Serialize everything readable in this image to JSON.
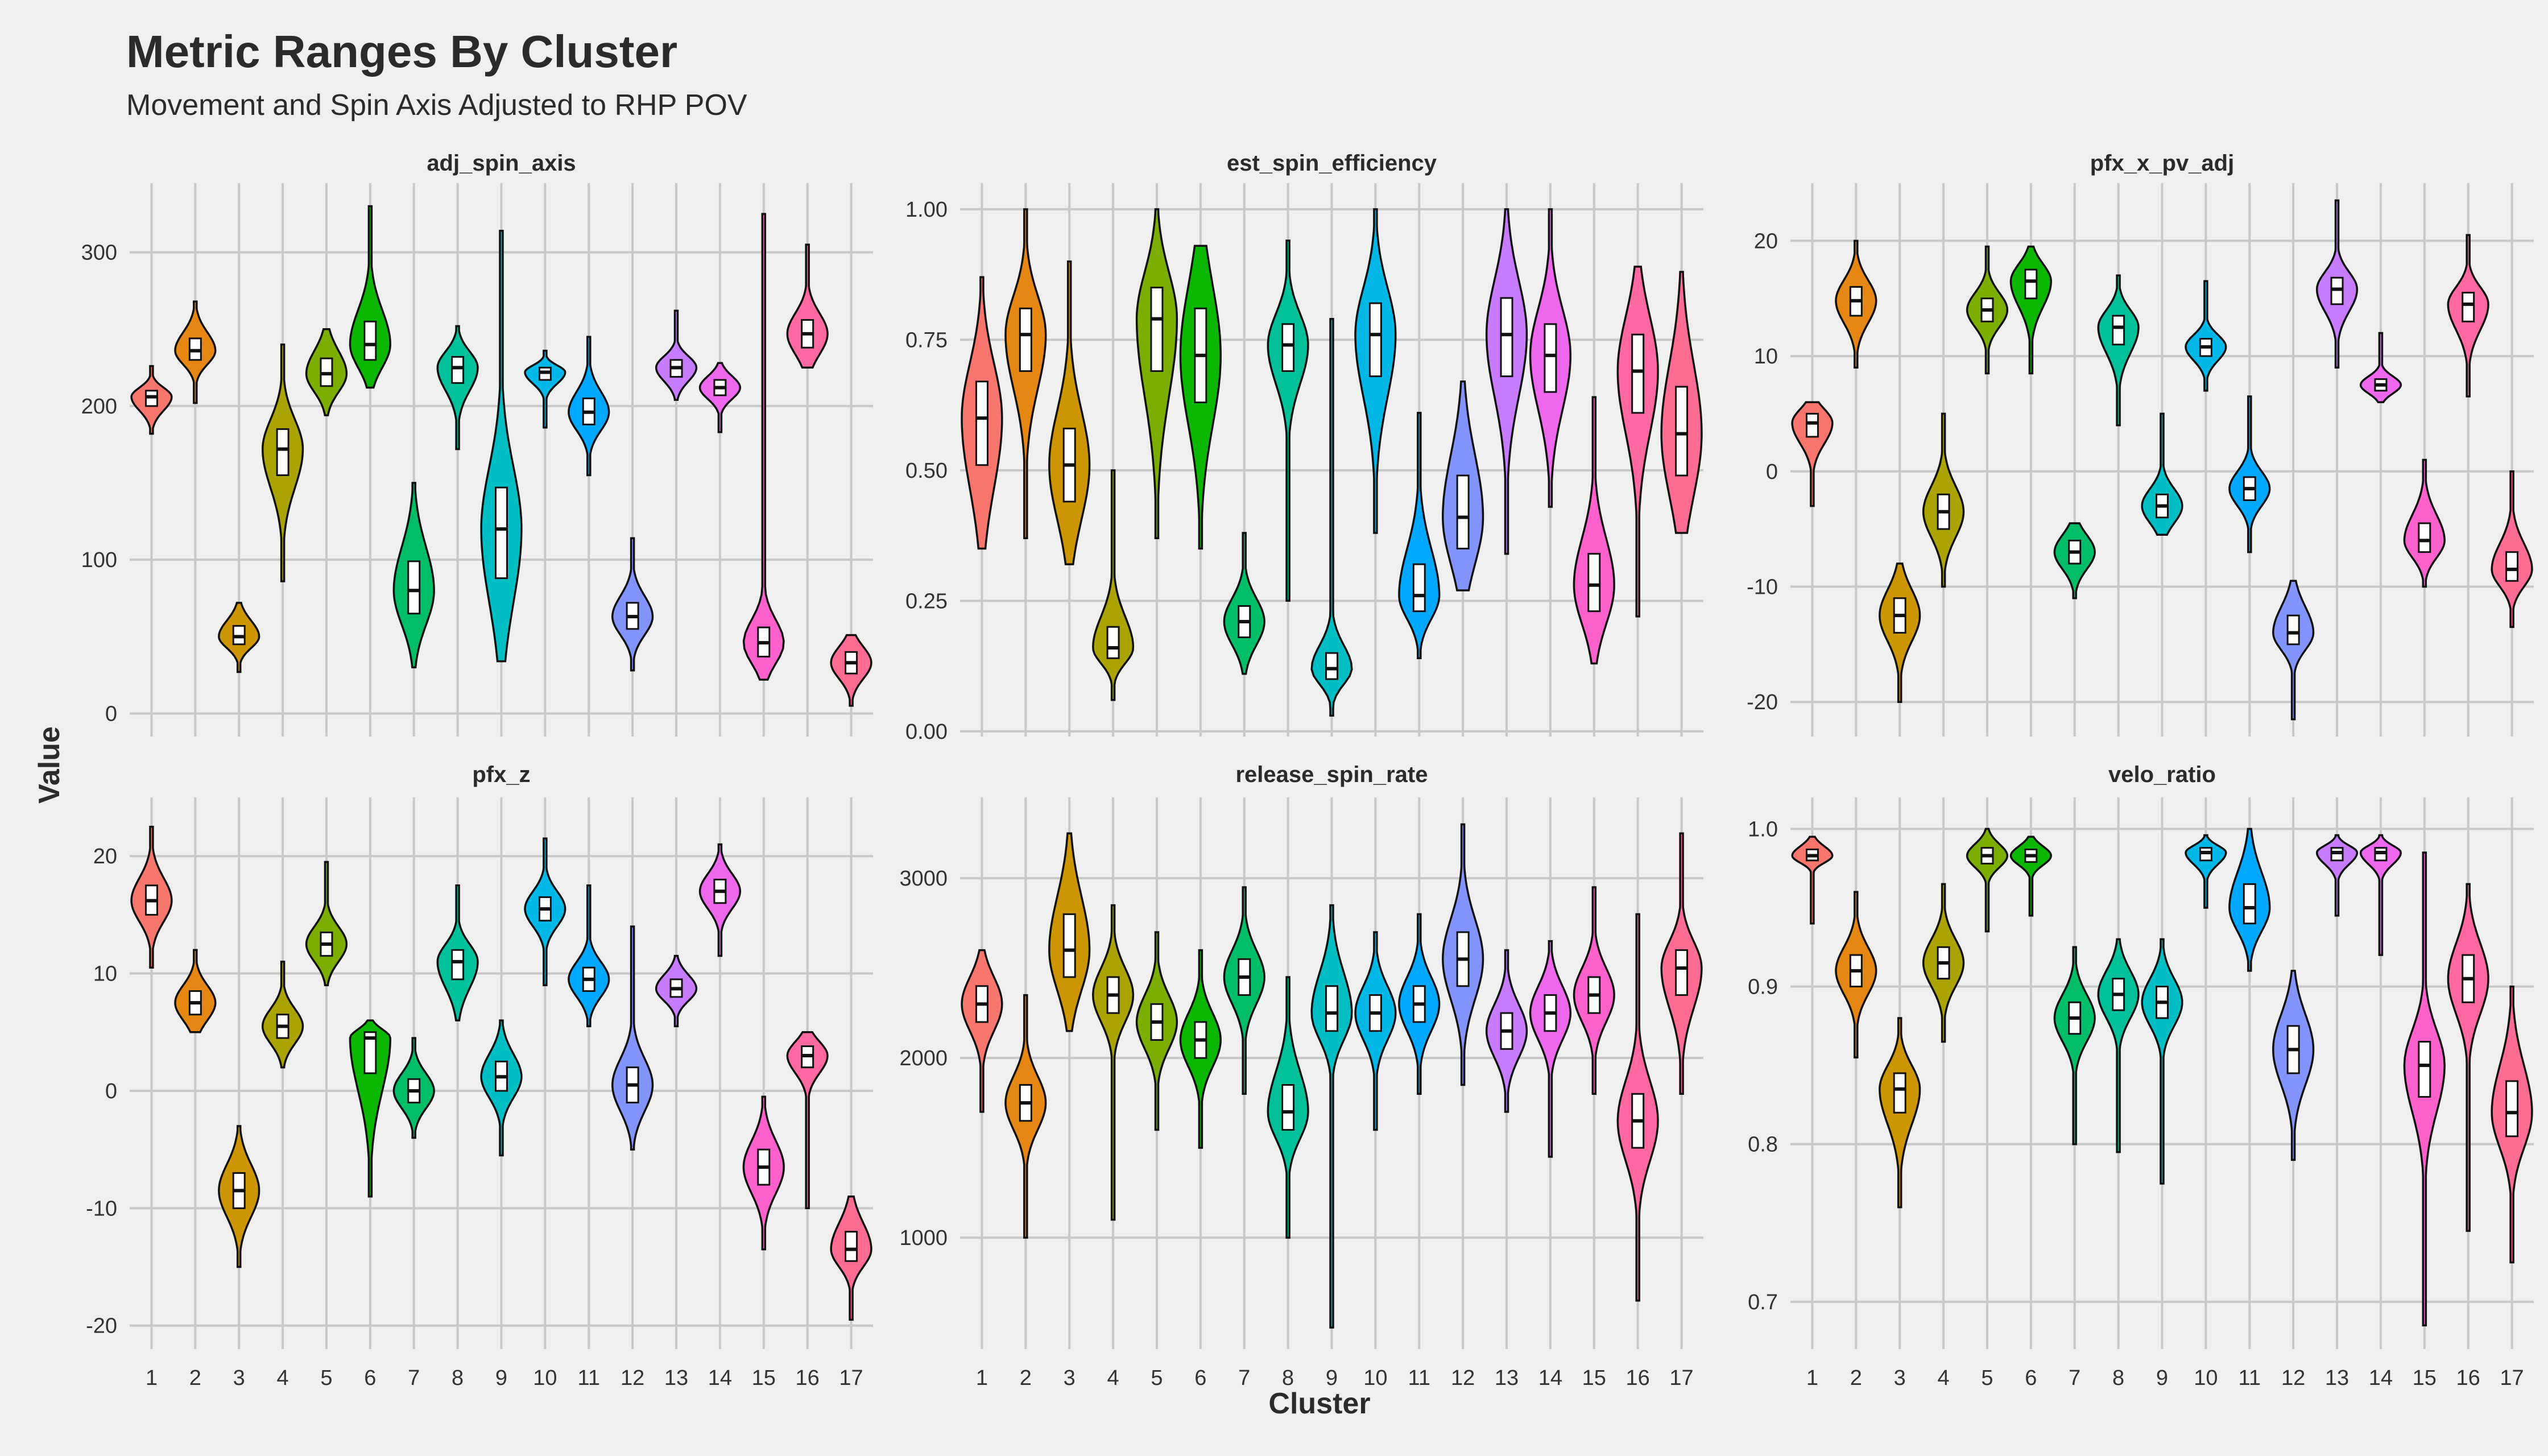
{
  "title": "Metric Ranges By Cluster",
  "subtitle": "Movement and Spin Axis Adjusted to RHP POV",
  "chart_data": {
    "type": "violin",
    "xlabel": "Cluster",
    "ylabel": "Value",
    "categories": [
      "1",
      "2",
      "3",
      "4",
      "5",
      "6",
      "7",
      "8",
      "9",
      "10",
      "11",
      "12",
      "13",
      "14",
      "15",
      "16",
      "17"
    ],
    "colors": [
      "#F8766D",
      "#E68613",
      "#CD9600",
      "#ABA300",
      "#7CAE00",
      "#0CB702",
      "#00BE67",
      "#00C19A",
      "#00BFC4",
      "#00B8E7",
      "#00A9FF",
      "#8494FF",
      "#C77CFF",
      "#ED68ED",
      "#FF61CC",
      "#FF68A1",
      "#FF6C91"
    ],
    "panels": [
      {
        "name": "adj_spin_axis",
        "ylim": [
          -15,
          345
        ],
        "yticks": [
          0,
          100,
          200,
          300
        ],
        "ytick_labels": [
          "0",
          "100",
          "200",
          "300"
        ],
        "stats": [
          {
            "min": 182,
            "q1": 200,
            "med": 206,
            "q3": 210,
            "max": 226
          },
          {
            "min": 202,
            "q1": 230,
            "med": 236,
            "q3": 244,
            "max": 268
          },
          {
            "min": 27,
            "q1": 45,
            "med": 50,
            "q3": 57,
            "max": 72
          },
          {
            "min": 86,
            "q1": 155,
            "med": 172,
            "q3": 185,
            "max": 240
          },
          {
            "min": 194,
            "q1": 213,
            "med": 221,
            "q3": 231,
            "max": 250
          },
          {
            "min": 212,
            "q1": 230,
            "med": 240,
            "q3": 255,
            "max": 330
          },
          {
            "min": 30,
            "q1": 65,
            "med": 80,
            "q3": 99,
            "max": 150
          },
          {
            "min": 172,
            "q1": 215,
            "med": 225,
            "q3": 232,
            "max": 252
          },
          {
            "min": 34,
            "q1": 88,
            "med": 120,
            "q3": 147,
            "max": 314
          },
          {
            "min": 186,
            "q1": 217,
            "med": 222,
            "q3": 225,
            "max": 236
          },
          {
            "min": 155,
            "q1": 188,
            "med": 196,
            "q3": 205,
            "max": 245
          },
          {
            "min": 28,
            "q1": 55,
            "med": 63,
            "q3": 72,
            "max": 114
          },
          {
            "min": 204,
            "q1": 219,
            "med": 225,
            "q3": 230,
            "max": 262
          },
          {
            "min": 183,
            "q1": 207,
            "med": 212,
            "q3": 217,
            "max": 228
          },
          {
            "min": 22,
            "q1": 37,
            "med": 46,
            "q3": 56,
            "max": 325
          },
          {
            "min": 225,
            "q1": 238,
            "med": 247,
            "q3": 256,
            "max": 305
          },
          {
            "min": 5,
            "q1": 26,
            "med": 33,
            "q3": 40,
            "max": 51
          }
        ]
      },
      {
        "name": "est_spin_efficiency",
        "ylim": [
          -0.01,
          1.05
        ],
        "yticks": [
          0,
          0.25,
          0.5,
          0.75,
          1
        ],
        "ytick_labels": [
          "0.00",
          "0.25",
          "0.50",
          "0.75",
          "1.00"
        ],
        "stats": [
          {
            "min": 0.35,
            "q1": 0.51,
            "med": 0.6,
            "q3": 0.67,
            "max": 0.87
          },
          {
            "min": 0.37,
            "q1": 0.69,
            "med": 0.76,
            "q3": 0.81,
            "max": 1.0
          },
          {
            "min": 0.32,
            "q1": 0.44,
            "med": 0.51,
            "q3": 0.58,
            "max": 0.9
          },
          {
            "min": 0.06,
            "q1": 0.14,
            "med": 0.16,
            "q3": 0.2,
            "max": 0.5
          },
          {
            "min": 0.37,
            "q1": 0.69,
            "med": 0.79,
            "q3": 0.85,
            "max": 1.0
          },
          {
            "min": 0.35,
            "q1": 0.63,
            "med": 0.72,
            "q3": 0.81,
            "max": 0.93
          },
          {
            "min": 0.11,
            "q1": 0.18,
            "med": 0.21,
            "q3": 0.24,
            "max": 0.38
          },
          {
            "min": 0.25,
            "q1": 0.69,
            "med": 0.74,
            "q3": 0.78,
            "max": 0.94
          },
          {
            "min": 0.03,
            "q1": 0.1,
            "med": 0.12,
            "q3": 0.15,
            "max": 0.79
          },
          {
            "min": 0.38,
            "q1": 0.68,
            "med": 0.76,
            "q3": 0.82,
            "max": 1.0
          },
          {
            "min": 0.14,
            "q1": 0.23,
            "med": 0.26,
            "q3": 0.32,
            "max": 0.61
          },
          {
            "min": 0.27,
            "q1": 0.35,
            "med": 0.41,
            "q3": 0.49,
            "max": 0.67
          },
          {
            "min": 0.34,
            "q1": 0.68,
            "med": 0.76,
            "q3": 0.83,
            "max": 1.0
          },
          {
            "min": 0.43,
            "q1": 0.65,
            "med": 0.72,
            "q3": 0.78,
            "max": 1.0
          },
          {
            "min": 0.13,
            "q1": 0.23,
            "med": 0.28,
            "q3": 0.34,
            "max": 0.64
          },
          {
            "min": 0.22,
            "q1": 0.61,
            "med": 0.69,
            "q3": 0.76,
            "max": 0.89
          },
          {
            "min": 0.38,
            "q1": 0.49,
            "med": 0.57,
            "q3": 0.66,
            "max": 0.88
          }
        ]
      },
      {
        "name": "pfx_x_pv_adj",
        "ylim": [
          -23,
          25
        ],
        "yticks": [
          -20,
          -10,
          0,
          10,
          20
        ],
        "ytick_labels": [
          "-20",
          "-10",
          "0",
          "10",
          "20"
        ],
        "stats": [
          {
            "min": -3,
            "q1": 3,
            "med": 4.2,
            "q3": 5,
            "max": 6
          },
          {
            "min": 9,
            "q1": 13.5,
            "med": 14.8,
            "q3": 16,
            "max": 20
          },
          {
            "min": -20,
            "q1": -14,
            "med": -12.5,
            "q3": -11,
            "max": -8
          },
          {
            "min": -10,
            "q1": -5,
            "med": -3.5,
            "q3": -2,
            "max": 5
          },
          {
            "min": 8.5,
            "q1": 13,
            "med": 14,
            "q3": 15,
            "max": 19.5
          },
          {
            "min": 8.5,
            "q1": 15,
            "med": 16.5,
            "q3": 17.5,
            "max": 19.5
          },
          {
            "min": -11,
            "q1": -8,
            "med": -7,
            "q3": -6,
            "max": -4.5
          },
          {
            "min": 4,
            "q1": 11,
            "med": 12.5,
            "q3": 13.5,
            "max": 17
          },
          {
            "min": -5.5,
            "q1": -4,
            "med": -3,
            "q3": -2,
            "max": 5
          },
          {
            "min": 7,
            "q1": 10,
            "med": 10.8,
            "q3": 11.5,
            "max": 16.5
          },
          {
            "min": -7,
            "q1": -2.5,
            "med": -1.5,
            "q3": -0.5,
            "max": 6.5
          },
          {
            "min": -21.5,
            "q1": -15,
            "med": -14,
            "q3": -12.5,
            "max": -9.5
          },
          {
            "min": 9,
            "q1": 14.5,
            "med": 15.8,
            "q3": 16.8,
            "max": 23.5
          },
          {
            "min": 6,
            "q1": 7,
            "med": 7.5,
            "q3": 8,
            "max": 12
          },
          {
            "min": -10,
            "q1": -7,
            "med": -6,
            "q3": -4.5,
            "max": 1
          },
          {
            "min": 6.5,
            "q1": 13,
            "med": 14.5,
            "q3": 15.5,
            "max": 20.5
          },
          {
            "min": -13.5,
            "q1": -9.5,
            "med": -8.5,
            "q3": -7,
            "max": 0
          }
        ]
      },
      {
        "name": "pfx_z",
        "ylim": [
          -22,
          25
        ],
        "yticks": [
          -20,
          -10,
          0,
          10,
          20
        ],
        "ytick_labels": [
          "-20",
          "-10",
          "0",
          "10",
          "20"
        ],
        "stats": [
          {
            "min": 10.5,
            "q1": 15,
            "med": 16.2,
            "q3": 17.5,
            "max": 22.5
          },
          {
            "min": 5,
            "q1": 6.5,
            "med": 7.5,
            "q3": 8.5,
            "max": 12
          },
          {
            "min": -15,
            "q1": -10,
            "med": -8.5,
            "q3": -7,
            "max": -3
          },
          {
            "min": 2,
            "q1": 4.5,
            "med": 5.5,
            "q3": 6.5,
            "max": 11
          },
          {
            "min": 9,
            "q1": 11.5,
            "med": 12.5,
            "q3": 13.5,
            "max": 19.5
          },
          {
            "min": -9,
            "q1": 1.5,
            "med": 4.5,
            "q3": 5,
            "max": 6
          },
          {
            "min": -4,
            "q1": -1,
            "med": 0,
            "q3": 1,
            "max": 4.5
          },
          {
            "min": 6,
            "q1": 9.5,
            "med": 11,
            "q3": 12,
            "max": 17.5
          },
          {
            "min": -5.5,
            "q1": 0,
            "med": 1.2,
            "q3": 2.5,
            "max": 6
          },
          {
            "min": 9,
            "q1": 14.5,
            "med": 15.5,
            "q3": 16.5,
            "max": 21.5
          },
          {
            "min": 5.5,
            "q1": 8.5,
            "med": 9.5,
            "q3": 10.5,
            "max": 17.5
          },
          {
            "min": -5,
            "q1": -1,
            "med": 0.5,
            "q3": 2,
            "max": 14
          },
          {
            "min": 5.5,
            "q1": 8,
            "med": 8.7,
            "q3": 9.5,
            "max": 11.5
          },
          {
            "min": 11.5,
            "q1": 16,
            "med": 17,
            "q3": 18,
            "max": 21
          },
          {
            "min": -13.5,
            "q1": -8,
            "med": -6.5,
            "q3": -5,
            "max": -0.5
          },
          {
            "min": -10,
            "q1": 2,
            "med": 3,
            "q3": 3.8,
            "max": 5
          },
          {
            "min": -19.5,
            "q1": -14.5,
            "med": -13.5,
            "q3": -12,
            "max": -9
          }
        ]
      },
      {
        "name": "release_spin_rate",
        "ylim": [
          380,
          3450
        ],
        "yticks": [
          1000,
          2000,
          3000
        ],
        "ytick_labels": [
          "1000",
          "2000",
          "3000"
        ],
        "stats": [
          {
            "min": 1700,
            "q1": 2200,
            "med": 2300,
            "q3": 2400,
            "max": 2600
          },
          {
            "min": 1000,
            "q1": 1650,
            "med": 1750,
            "q3": 1850,
            "max": 2350
          },
          {
            "min": 2150,
            "q1": 2450,
            "med": 2600,
            "q3": 2800,
            "max": 3250
          },
          {
            "min": 1100,
            "q1": 2250,
            "med": 2350,
            "q3": 2450,
            "max": 2850
          },
          {
            "min": 1600,
            "q1": 2100,
            "med": 2200,
            "q3": 2300,
            "max": 2700
          },
          {
            "min": 1500,
            "q1": 2000,
            "med": 2100,
            "q3": 2200,
            "max": 2600
          },
          {
            "min": 1800,
            "q1": 2350,
            "med": 2450,
            "q3": 2550,
            "max": 2950
          },
          {
            "min": 1000,
            "q1": 1600,
            "med": 1700,
            "q3": 1850,
            "max": 2450
          },
          {
            "min": 500,
            "q1": 2150,
            "med": 2250,
            "q3": 2400,
            "max": 2850
          },
          {
            "min": 1600,
            "q1": 2150,
            "med": 2250,
            "q3": 2350,
            "max": 2700
          },
          {
            "min": 1800,
            "q1": 2200,
            "med": 2300,
            "q3": 2400,
            "max": 2800
          },
          {
            "min": 1850,
            "q1": 2400,
            "med": 2550,
            "q3": 2700,
            "max": 3300
          },
          {
            "min": 1700,
            "q1": 2050,
            "med": 2150,
            "q3": 2250,
            "max": 2600
          },
          {
            "min": 1450,
            "q1": 2150,
            "med": 2250,
            "q3": 2350,
            "max": 2650
          },
          {
            "min": 1800,
            "q1": 2250,
            "med": 2350,
            "q3": 2450,
            "max": 2950
          },
          {
            "min": 650,
            "q1": 1500,
            "med": 1650,
            "q3": 1800,
            "max": 2800
          },
          {
            "min": 1800,
            "q1": 2350,
            "med": 2500,
            "q3": 2600,
            "max": 3250
          }
        ]
      },
      {
        "name": "velo_ratio",
        "ylim": [
          0.67,
          1.02
        ],
        "yticks": [
          0.7,
          0.8,
          0.9,
          1.0
        ],
        "ytick_labels": [
          "0.7",
          "0.8",
          "0.9",
          "1.0"
        ],
        "stats": [
          {
            "min": 0.94,
            "q1": 0.98,
            "med": 0.983,
            "q3": 0.987,
            "max": 0.995
          },
          {
            "min": 0.855,
            "q1": 0.9,
            "med": 0.91,
            "q3": 0.92,
            "max": 0.96
          },
          {
            "min": 0.76,
            "q1": 0.82,
            "med": 0.835,
            "q3": 0.845,
            "max": 0.88
          },
          {
            "min": 0.865,
            "q1": 0.905,
            "med": 0.915,
            "q3": 0.925,
            "max": 0.965
          },
          {
            "min": 0.935,
            "q1": 0.978,
            "med": 0.983,
            "q3": 0.988,
            "max": 1.0
          },
          {
            "min": 0.945,
            "q1": 0.979,
            "med": 0.983,
            "q3": 0.987,
            "max": 0.995
          },
          {
            "min": 0.8,
            "q1": 0.87,
            "med": 0.88,
            "q3": 0.89,
            "max": 0.925
          },
          {
            "min": 0.795,
            "q1": 0.885,
            "med": 0.895,
            "q3": 0.905,
            "max": 0.93
          },
          {
            "min": 0.775,
            "q1": 0.88,
            "med": 0.89,
            "q3": 0.9,
            "max": 0.93
          },
          {
            "min": 0.95,
            "q1": 0.98,
            "med": 0.985,
            "q3": 0.988,
            "max": 0.996
          },
          {
            "min": 0.91,
            "q1": 0.94,
            "med": 0.95,
            "q3": 0.965,
            "max": 1.0
          },
          {
            "min": 0.79,
            "q1": 0.845,
            "med": 0.86,
            "q3": 0.875,
            "max": 0.91
          },
          {
            "min": 0.945,
            "q1": 0.98,
            "med": 0.985,
            "q3": 0.988,
            "max": 0.996
          },
          {
            "min": 0.92,
            "q1": 0.98,
            "med": 0.985,
            "q3": 0.988,
            "max": 0.996
          },
          {
            "min": 0.685,
            "q1": 0.83,
            "med": 0.85,
            "q3": 0.865,
            "max": 0.985
          },
          {
            "min": 0.745,
            "q1": 0.89,
            "med": 0.905,
            "q3": 0.92,
            "max": 0.965
          },
          {
            "min": 0.725,
            "q1": 0.805,
            "med": 0.82,
            "q3": 0.84,
            "max": 0.9
          }
        ]
      }
    ]
  }
}
